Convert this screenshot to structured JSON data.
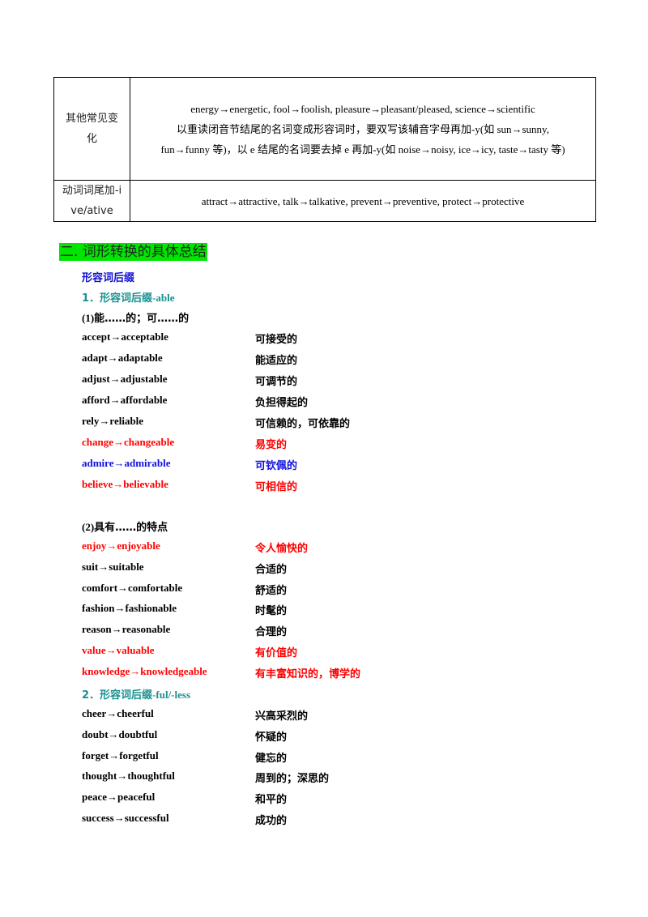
{
  "table": {
    "rows": [
      {
        "label": "其他常见变化",
        "lines": [
          "energy→energetic, fool→foolish, pleasure→pleasant/pleased, science→scientific",
          "以重读闭音节结尾的名词变成形容词时，要双写该辅音字母再加-y(如 sun→sunny,",
          "fun→funny 等)，以 e 结尾的名词要去掉 e 再加-y(如 noise→noisy, ice→icy, taste→tasty 等)"
        ]
      },
      {
        "label": "动词词尾加-ive/ative",
        "lines": [
          "attract→attractive, talk→talkative, prevent→preventive, protect→protective"
        ]
      }
    ]
  },
  "heading": "二. 词形转换的具体总结",
  "subheading": "形容词后缀",
  "section1": {
    "num": "1．",
    "cn": "形容词后缀",
    "en": "-able"
  },
  "group1": {
    "prefix": "(1)",
    "cn": "能……的；可……的"
  },
  "group2": {
    "prefix": "(2)",
    "cn": "具有……的特点"
  },
  "section2": {
    "num": "2．",
    "cn": "形容词后缀",
    "en": "-ful/-less"
  },
  "items_g1": [
    {
      "word": "accept→acceptable",
      "meaning": "可接受的",
      "color": "black"
    },
    {
      "word": "adapt→adaptable",
      "meaning": "能适应的",
      "color": "black"
    },
    {
      "word": "adjust→adjustable",
      "meaning": "可调节的",
      "color": "black"
    },
    {
      "word": "afford→affordable",
      "meaning": "负担得起的",
      "color": "black"
    },
    {
      "word": "rely→reliable",
      "meaning": "可信赖的，可依靠的",
      "color": "black"
    },
    {
      "word": "change→changeable",
      "meaning": "易变的",
      "color": "red"
    },
    {
      "word": "admire→admirable",
      "meaning": "可钦佩的",
      "color": "blue"
    },
    {
      "word": "believe→believable",
      "meaning": "可相信的",
      "color": "red"
    }
  ],
  "items_g2": [
    {
      "word": "enjoy→enjoyable",
      "meaning": "令人愉快的",
      "color": "red"
    },
    {
      "word": "suit→suitable",
      "meaning": "合适的",
      "color": "black"
    },
    {
      "word": "comfort→comfortable",
      "meaning": "舒适的",
      "color": "black"
    },
    {
      "word": "fashion→fashionable",
      "meaning": "时髦的",
      "color": "black"
    },
    {
      "word": "reason→reasonable",
      "meaning": "合理的",
      "color": "black"
    },
    {
      "word": "value→valuable",
      "meaning": "有价值的",
      "color": "red"
    },
    {
      "word": "knowledge→knowledgeable",
      "meaning": "有丰富知识的，博学的",
      "color": "red"
    }
  ],
  "items_s2": [
    {
      "word": "cheer→cheerful",
      "meaning": "兴高采烈的",
      "color": "black"
    },
    {
      "word": "doubt→doubtful",
      "meaning": "怀疑的",
      "color": "black"
    },
    {
      "word": "forget→forgetful",
      "meaning": "健忘的",
      "color": "black"
    },
    {
      "word": "thought→thoughtful",
      "meaning": "周到的；深思的",
      "color": "black"
    },
    {
      "word": "peace→peaceful",
      "meaning": "和平的",
      "color": "black"
    },
    {
      "word": "success→successful",
      "meaning": "成功的",
      "color": "black"
    }
  ]
}
